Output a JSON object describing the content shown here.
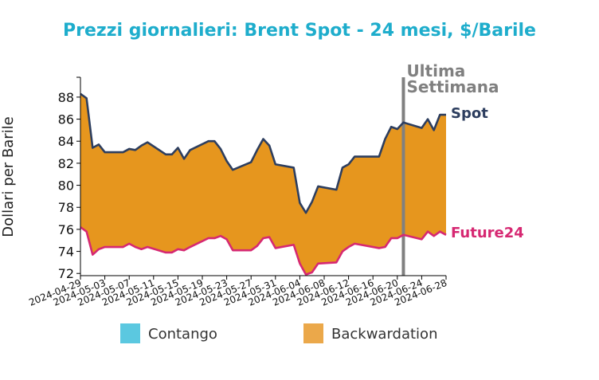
{
  "chart_data": {
    "type": "area",
    "title": "Prezzi giornalieri: Brent Spot - 24 mesi, $/Barile",
    "ylabel": "Dollari per Barile",
    "xlabel": "",
    "ylim": [
      71.8,
      89.8
    ],
    "yticks": [
      72,
      74,
      76,
      78,
      80,
      82,
      84,
      86,
      88
    ],
    "xlim": [
      "2024-04-29",
      "2024-06-28"
    ],
    "xticks": [
      "2024-04-29",
      "2024-05-03",
      "2024-05-07",
      "2024-05-11",
      "2024-05-15",
      "2024-05-19",
      "2024-05-23",
      "2024-05-27",
      "2024-05-31",
      "2024-06-04",
      "2024-06-08",
      "2024-06-12",
      "2024-06-16",
      "2024-06-20",
      "2024-06-24",
      "2024-06-28"
    ],
    "annotation": {
      "text_line1": "Ultima",
      "text_line2": "Settimana",
      "x": "2024-06-21"
    },
    "series": [
      {
        "name": "Spot",
        "color": "#2d3e5f",
        "x": [
          "2024-04-29",
          "2024-04-30",
          "2024-05-01",
          "2024-05-02",
          "2024-05-03",
          "2024-05-06",
          "2024-05-07",
          "2024-05-08",
          "2024-05-09",
          "2024-05-10",
          "2024-05-13",
          "2024-05-14",
          "2024-05-15",
          "2024-05-16",
          "2024-05-17",
          "2024-05-20",
          "2024-05-21",
          "2024-05-22",
          "2024-05-23",
          "2024-05-24",
          "2024-05-27",
          "2024-05-28",
          "2024-05-29",
          "2024-05-30",
          "2024-05-31",
          "2024-06-03",
          "2024-06-04",
          "2024-06-05",
          "2024-06-06",
          "2024-06-07",
          "2024-06-10",
          "2024-06-11",
          "2024-06-12",
          "2024-06-13",
          "2024-06-14",
          "2024-06-17",
          "2024-06-18",
          "2024-06-19",
          "2024-06-20",
          "2024-06-21",
          "2024-06-24",
          "2024-06-25",
          "2024-06-26",
          "2024-06-27",
          "2024-06-28"
        ],
        "values": [
          88.3,
          87.9,
          83.4,
          83.7,
          83.0,
          83.0,
          83.3,
          83.2,
          83.6,
          83.9,
          82.8,
          82.8,
          83.4,
          82.4,
          83.2,
          84.0,
          84.0,
          83.3,
          82.2,
          81.4,
          82.1,
          83.2,
          84.2,
          83.6,
          81.9,
          81.6,
          78.4,
          77.5,
          78.5,
          79.9,
          79.6,
          81.6,
          81.9,
          82.6,
          82.6,
          82.6,
          84.2,
          85.3,
          85.1,
          85.7,
          85.2,
          86.0,
          85.0,
          86.4,
          86.4
        ]
      },
      {
        "name": "Future24",
        "color": "#d62872",
        "x": [
          "2024-04-29",
          "2024-04-30",
          "2024-05-01",
          "2024-05-02",
          "2024-05-03",
          "2024-05-06",
          "2024-05-07",
          "2024-05-08",
          "2024-05-09",
          "2024-05-10",
          "2024-05-13",
          "2024-05-14",
          "2024-05-15",
          "2024-05-16",
          "2024-05-17",
          "2024-05-20",
          "2024-05-21",
          "2024-05-22",
          "2024-05-23",
          "2024-05-24",
          "2024-05-27",
          "2024-05-28",
          "2024-05-29",
          "2024-05-30",
          "2024-05-31",
          "2024-06-03",
          "2024-06-04",
          "2024-06-05",
          "2024-06-06",
          "2024-06-07",
          "2024-06-10",
          "2024-06-11",
          "2024-06-12",
          "2024-06-13",
          "2024-06-14",
          "2024-06-17",
          "2024-06-18",
          "2024-06-19",
          "2024-06-20",
          "2024-06-21",
          "2024-06-24",
          "2024-06-25",
          "2024-06-26",
          "2024-06-27",
          "2024-06-28"
        ],
        "values": [
          76.2,
          75.8,
          73.7,
          74.2,
          74.4,
          74.4,
          74.7,
          74.4,
          74.2,
          74.4,
          73.9,
          73.9,
          74.2,
          74.1,
          74.4,
          75.2,
          75.2,
          75.4,
          75.1,
          74.1,
          74.1,
          74.5,
          75.2,
          75.3,
          74.3,
          74.6,
          72.9,
          71.9,
          72.1,
          72.9,
          73.0,
          74.0,
          74.4,
          74.7,
          74.6,
          74.3,
          74.4,
          75.2,
          75.2,
          75.5,
          75.1,
          75.8,
          75.4,
          75.8,
          75.5
        ]
      }
    ],
    "fill": {
      "backwardation_color": "#e6961e",
      "contango_color": "#5bc8e0"
    },
    "legend": [
      {
        "label": "Contango",
        "color": "#5bc8e0"
      },
      {
        "label": "Backwardation",
        "color": "#eba84a"
      }
    ],
    "legend_position": "bottom",
    "grid": false,
    "title_color": "#1eadcc",
    "annotation_color": "#808080"
  }
}
